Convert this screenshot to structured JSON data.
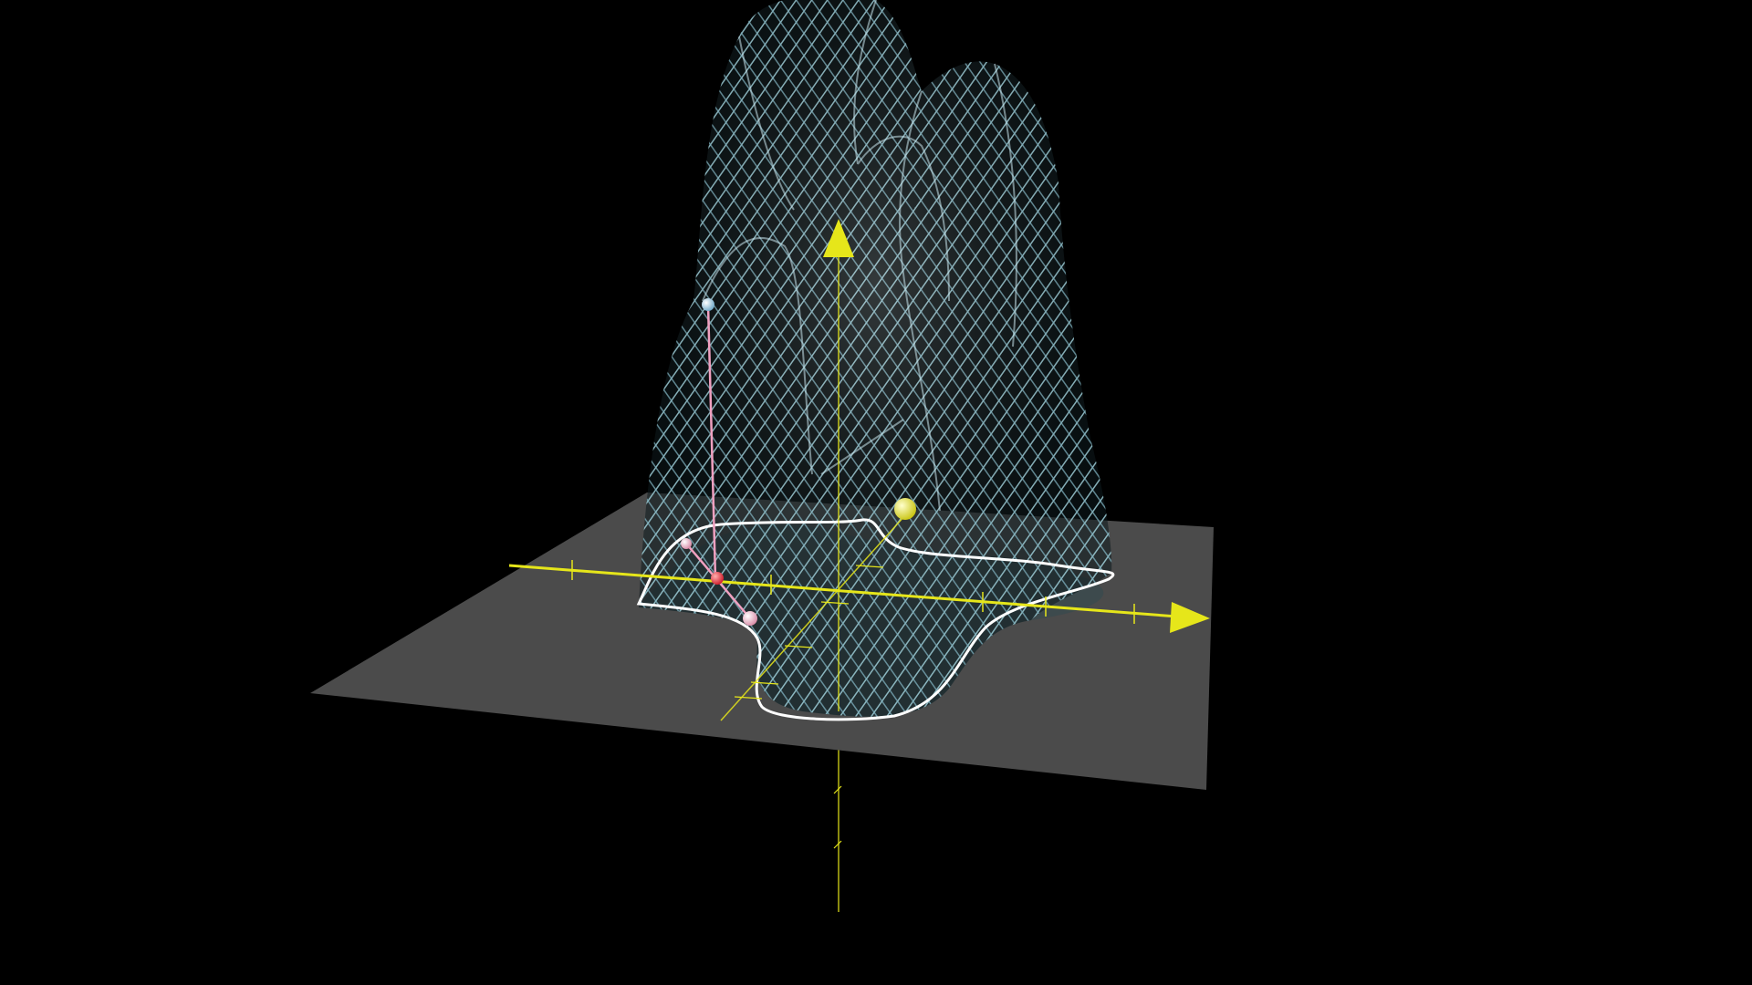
{
  "scene": {
    "type": "3d-graph",
    "background": "#000000",
    "plane_color": "#4d4d4d",
    "axis_color": "#e6e61a",
    "surface_color": "#8fc4cf",
    "surface_style": "wireframe-mesh",
    "contour_color": "#ffffff",
    "objects": [
      {
        "kind": "surface",
        "name": "bumpy-surface"
      },
      {
        "kind": "plane",
        "name": "xy-plane"
      },
      {
        "kind": "axis",
        "name": "x-axis",
        "arrow": true
      },
      {
        "kind": "axis",
        "name": "y-axis"
      },
      {
        "kind": "axis",
        "name": "z-axis",
        "arrow": true
      },
      {
        "kind": "curve",
        "name": "level-curve",
        "color": "#ffffff"
      },
      {
        "kind": "point",
        "name": "surface-point",
        "color": "#8fc8e0"
      },
      {
        "kind": "point",
        "name": "base-point",
        "color": "#e8303a"
      },
      {
        "kind": "point",
        "name": "handle-point-1",
        "color": "#e89ab0"
      },
      {
        "kind": "point",
        "name": "handle-point-2",
        "color": "#e89ab0"
      },
      {
        "kind": "point",
        "name": "yellow-point",
        "color": "#e6e61a"
      },
      {
        "kind": "segment",
        "name": "vertical-segment",
        "color": "#f0a0c0"
      }
    ]
  }
}
